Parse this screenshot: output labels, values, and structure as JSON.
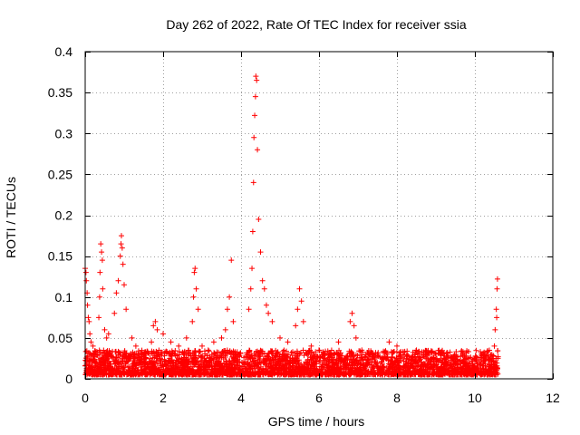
{
  "chart_data": {
    "type": "scatter",
    "title": "Day 262 of 2022, Rate Of TEC Index for receiver ssia",
    "xlabel": "GPS time / hours",
    "ylabel": "ROTI / TECUs",
    "xlim": [
      0,
      12
    ],
    "ylim": [
      0,
      0.4
    ],
    "xticks": [
      0,
      2,
      4,
      6,
      8,
      10,
      12
    ],
    "xtick_labels": [
      "0",
      "2",
      "4",
      "6",
      "8",
      "10",
      "12"
    ],
    "yticks": [
      0,
      0.05,
      0.1,
      0.15,
      0.2,
      0.25,
      0.3,
      0.35,
      0.4
    ],
    "ytick_labels": [
      "0",
      "0.05",
      "0.1",
      "0.15",
      "0.2",
      "0.25",
      "0.3",
      "0.35",
      "0.4"
    ],
    "grid": true,
    "marker": "+",
    "color": "#ff0000",
    "baseline": {
      "x_range": [
        0,
        10.6
      ],
      "typical_range": [
        0.005,
        0.03
      ],
      "points_per_hour": 320
    },
    "series": [
      {
        "name": "ROTI",
        "x": [
          0.0,
          0.02,
          0.03,
          0.05,
          0.06,
          0.08,
          0.1,
          0.12,
          0.15,
          0.2,
          0.35,
          0.37,
          0.38,
          0.4,
          0.42,
          0.44,
          0.45,
          0.5,
          0.55,
          0.6,
          0.75,
          0.8,
          0.85,
          0.9,
          0.92,
          0.93,
          0.95,
          0.97,
          1.0,
          1.05,
          1.2,
          1.3,
          1.5,
          1.7,
          1.75,
          1.8,
          1.85,
          2.0,
          2.2,
          2.4,
          2.6,
          2.75,
          2.78,
          2.8,
          2.82,
          2.85,
          2.9,
          3.0,
          3.3,
          3.5,
          3.6,
          3.65,
          3.7,
          3.75,
          3.8,
          4.2,
          4.25,
          4.28,
          4.3,
          4.32,
          4.33,
          4.35,
          4.37,
          4.38,
          4.4,
          4.42,
          4.45,
          4.5,
          4.55,
          4.6,
          4.65,
          4.7,
          4.8,
          5.0,
          5.2,
          5.4,
          5.45,
          5.5,
          5.55,
          5.6,
          5.8,
          6.0,
          6.4,
          6.5,
          6.8,
          6.85,
          6.9,
          6.95,
          7.1,
          7.5,
          7.8,
          8.0,
          8.5,
          9.0,
          9.5,
          10.0,
          10.45,
          10.5,
          10.52,
          10.55,
          10.56,
          10.57,
          10.58
        ],
        "y": [
          0.135,
          0.13,
          0.12,
          0.105,
          0.09,
          0.075,
          0.07,
          0.055,
          0.045,
          0.04,
          0.075,
          0.1,
          0.13,
          0.165,
          0.155,
          0.145,
          0.11,
          0.06,
          0.05,
          0.055,
          0.08,
          0.105,
          0.12,
          0.15,
          0.165,
          0.175,
          0.16,
          0.14,
          0.115,
          0.085,
          0.05,
          0.04,
          0.03,
          0.045,
          0.065,
          0.07,
          0.06,
          0.055,
          0.045,
          0.04,
          0.05,
          0.07,
          0.1,
          0.13,
          0.135,
          0.11,
          0.085,
          0.04,
          0.045,
          0.05,
          0.06,
          0.085,
          0.1,
          0.145,
          0.07,
          0.085,
          0.11,
          0.135,
          0.18,
          0.24,
          0.295,
          0.322,
          0.345,
          0.37,
          0.365,
          0.28,
          0.195,
          0.155,
          0.12,
          0.11,
          0.09,
          0.08,
          0.07,
          0.05,
          0.045,
          0.065,
          0.085,
          0.11,
          0.095,
          0.07,
          0.04,
          0.035,
          0.03,
          0.045,
          0.07,
          0.08,
          0.065,
          0.05,
          0.035,
          0.03,
          0.045,
          0.04,
          0.035,
          0.03,
          0.025,
          0.025,
          0.025,
          0.04,
          0.06,
          0.085,
          0.075,
          0.11,
          0.122
        ]
      }
    ]
  }
}
